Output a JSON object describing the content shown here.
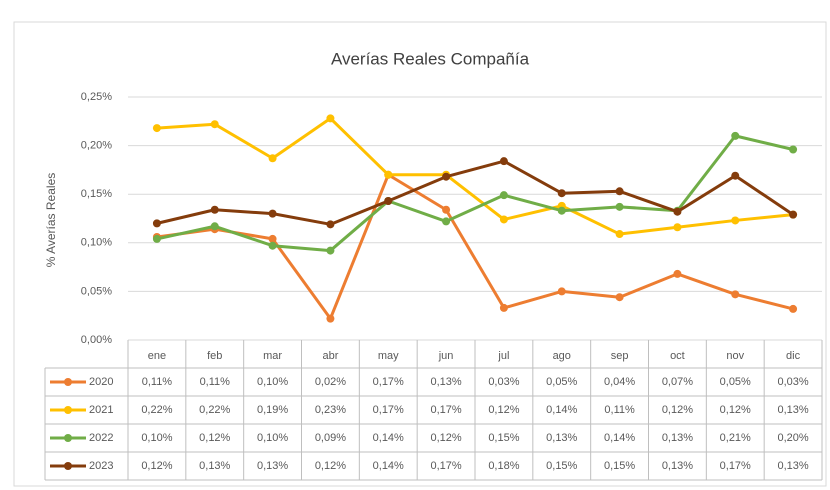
{
  "chart_data": {
    "type": "line",
    "title": "Averías Reales Compañía",
    "y_label": "% Averías Reales",
    "categories": [
      "ene",
      "feb",
      "mar",
      "abr",
      "may",
      "jun",
      "jul",
      "ago",
      "sep",
      "oct",
      "nov",
      "dic"
    ],
    "ylim": [
      0,
      0.25
    ],
    "yticks": [
      {
        "value": 0,
        "label": "0,00%"
      },
      {
        "value": 0.05,
        "label": "0,05%"
      },
      {
        "value": 0.1,
        "label": "0,10%"
      },
      {
        "value": 0.15,
        "label": "0,15%"
      },
      {
        "value": 0.2,
        "label": "0,20%"
      },
      {
        "value": 0.25,
        "label": "0,25%"
      }
    ],
    "grid": true,
    "series": [
      {
        "name": "2020",
        "color": "#ED7D31",
        "values": [
          0.106,
          0.114,
          0.104,
          0.022,
          0.17,
          0.134,
          0.033,
          0.05,
          0.044,
          0.068,
          0.047,
          0.032
        ],
        "value_labels": [
          "0,11%",
          "0,11%",
          "0,10%",
          "0,02%",
          "0,17%",
          "0,13%",
          "0,03%",
          "0,05%",
          "0,04%",
          "0,07%",
          "0,05%",
          "0,03%"
        ]
      },
      {
        "name": "2021",
        "color": "#FFC000",
        "values": [
          0.218,
          0.222,
          0.187,
          0.228,
          0.17,
          0.17,
          0.124,
          0.138,
          0.109,
          0.116,
          0.123,
          0.129
        ],
        "value_labels": [
          "0,22%",
          "0,22%",
          "0,19%",
          "0,23%",
          "0,17%",
          "0,17%",
          "0,12%",
          "0,14%",
          "0,11%",
          "0,12%",
          "0,12%",
          "0,13%"
        ]
      },
      {
        "name": "2022",
        "color": "#70AD47",
        "values": [
          0.104,
          0.117,
          0.097,
          0.092,
          0.143,
          0.122,
          0.149,
          0.133,
          0.137,
          0.133,
          0.21,
          0.196
        ],
        "value_labels": [
          "0,10%",
          "0,12%",
          "0,10%",
          "0,09%",
          "0,14%",
          "0,12%",
          "0,15%",
          "0,13%",
          "0,14%",
          "0,13%",
          "0,21%",
          "0,20%"
        ]
      },
      {
        "name": "2023",
        "color": "#843C0C",
        "values": [
          0.12,
          0.134,
          0.13,
          0.119,
          0.143,
          0.168,
          0.184,
          0.151,
          0.153,
          0.132,
          0.169,
          0.129
        ],
        "value_labels": [
          "0,12%",
          "0,13%",
          "0,13%",
          "0,12%",
          "0,14%",
          "0,17%",
          "0,18%",
          "0,15%",
          "0,15%",
          "0,13%",
          "0,17%",
          "0,13%"
        ]
      }
    ]
  }
}
